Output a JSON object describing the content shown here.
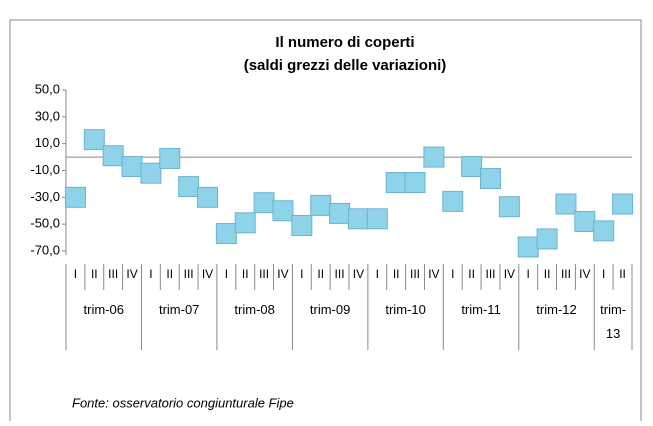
{
  "chart_data": {
    "type": "line",
    "title": [
      "Il numero di coperti",
      "(saldi grezzi delle variazioni)"
    ],
    "categories": [
      "I",
      "II",
      "III",
      "IV",
      "I",
      "II",
      "III",
      "IV",
      "I",
      "II",
      "III",
      "IV",
      "I",
      "II",
      "III",
      "IV",
      "I",
      "II",
      "III",
      "IV",
      "I",
      "II",
      "III",
      "IV",
      "I",
      "II",
      "III",
      "IV",
      "I",
      "II"
    ],
    "category_groups": [
      "trim-06",
      "trim-07",
      "trim-08",
      "trim-09",
      "trim-10",
      "trim-11",
      "trim-12",
      "trim-13"
    ],
    "series": [
      {
        "color": "#8fd3ea",
        "values": [
          -30,
          13,
          1,
          -7,
          -12,
          -1,
          -22,
          -30,
          -57,
          -49,
          -34,
          -40,
          -51,
          -36,
          -42,
          -46,
          -46,
          -19,
          -19,
          0,
          -33,
          -7,
          -16,
          -37,
          -67,
          -61,
          -35,
          -48,
          -55,
          -35
        ]
      }
    ],
    "ylim": [
      -70,
      50
    ],
    "yticks": [
      {
        "value": 50,
        "label": "50,0"
      },
      {
        "value": 30,
        "label": "30,0"
      },
      {
        "value": 10,
        "label": "10,0"
      },
      {
        "value": -10,
        "label": "-10,0"
      },
      {
        "value": -30,
        "label": "-30,0"
      },
      {
        "value": -50,
        "label": "-50,0"
      },
      {
        "value": -70,
        "label": "-70,0"
      }
    ],
    "source": "Fonte: osservatorio congiunturale Fipe"
  }
}
